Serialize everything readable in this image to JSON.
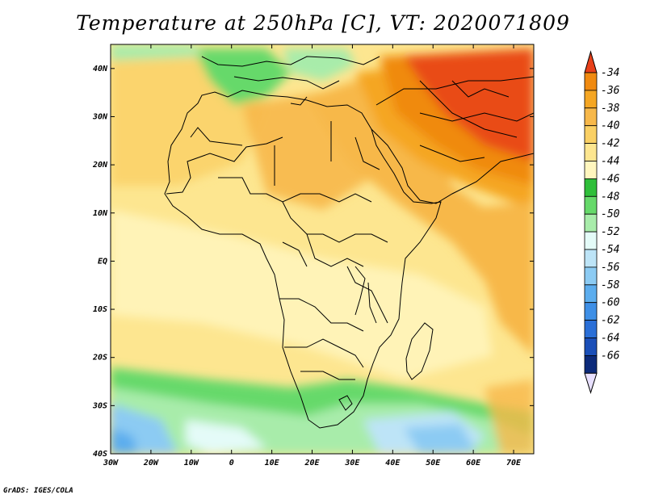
{
  "title": "Temperature at 250hPa [C], VT: 2020071809",
  "credit": "GrADS: IGES/COLA",
  "map": {
    "projection": "latlon",
    "lon_range": [
      -30,
      75
    ],
    "lat_range": [
      -40,
      45
    ],
    "lon_ticks": [
      {
        "value": -30,
        "label": "30W"
      },
      {
        "value": -20,
        "label": "20W"
      },
      {
        "value": -10,
        "label": "10W"
      },
      {
        "value": 0,
        "label": "0"
      },
      {
        "value": 10,
        "label": "10E"
      },
      {
        "value": 20,
        "label": "20E"
      },
      {
        "value": 30,
        "label": "30E"
      },
      {
        "value": 40,
        "label": "40E"
      },
      {
        "value": 50,
        "label": "50E"
      },
      {
        "value": 60,
        "label": "60E"
      },
      {
        "value": 70,
        "label": "70E"
      }
    ],
    "lat_ticks": [
      {
        "value": 40,
        "label": "40N"
      },
      {
        "value": 30,
        "label": "30N"
      },
      {
        "value": 20,
        "label": "20N"
      },
      {
        "value": 10,
        "label": "10N"
      },
      {
        "value": 0,
        "label": "EQ"
      },
      {
        "value": -10,
        "label": "10S"
      },
      {
        "value": -20,
        "label": "20S"
      },
      {
        "value": -30,
        "label": "30S"
      },
      {
        "value": -40,
        "label": "40S"
      }
    ]
  },
  "colorbar": {
    "levels": [
      {
        "label": "-34",
        "color": "#f08a10"
      },
      {
        "label": "-36",
        "color": "#f5a623"
      },
      {
        "label": "-38",
        "color": "#f7b84a"
      },
      {
        "label": "-40",
        "color": "#fad064"
      },
      {
        "label": "-42",
        "color": "#fde690"
      },
      {
        "label": "-44",
        "color": "#fff6be"
      },
      {
        "label": "-46",
        "color": "#2fbf3a"
      },
      {
        "label": "-48",
        "color": "#66d96a"
      },
      {
        "label": "-50",
        "color": "#a8ecaa"
      },
      {
        "label": "-52",
        "color": "#e4fbf8"
      },
      {
        "label": "-54",
        "color": "#bde4f7"
      },
      {
        "label": "-56",
        "color": "#8ccbf3"
      },
      {
        "label": "-58",
        "color": "#5cadee"
      },
      {
        "label": "-60",
        "color": "#3e8fe6"
      },
      {
        "label": "-62",
        "color": "#2a6fd7"
      },
      {
        "label": "-64",
        "color": "#1a4fb8"
      },
      {
        "label": "-66",
        "color": "#0c2a7a"
      }
    ],
    "top_color": "#e8401a",
    "bottom_color": "#e8e0ff"
  }
}
